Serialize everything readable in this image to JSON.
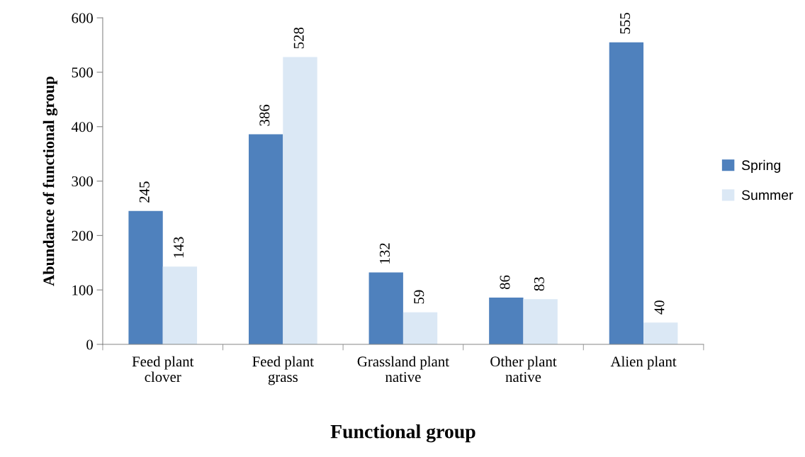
{
  "chart_data": {
    "type": "bar",
    "xlabel": "Functional group",
    "ylabel": "Abundance of functional group",
    "categories": [
      "Feed plant\nclover",
      "Feed plant\ngrass",
      "Grassland plant\nnative",
      "Other plant\nnative",
      "Alien plant"
    ],
    "series": [
      {
        "name": "Spring",
        "color": "#4f81bd",
        "values": [
          245,
          386,
          132,
          86,
          555
        ]
      },
      {
        "name": "Summer",
        "color": "#dbe8f5",
        "values": [
          143,
          528,
          59,
          83,
          40
        ]
      }
    ],
    "ylim": [
      0,
      600
    ],
    "yticks": [
      0,
      100,
      200,
      300,
      400,
      500,
      600
    ],
    "grid": false,
    "legend": "right",
    "data_labels": true
  }
}
